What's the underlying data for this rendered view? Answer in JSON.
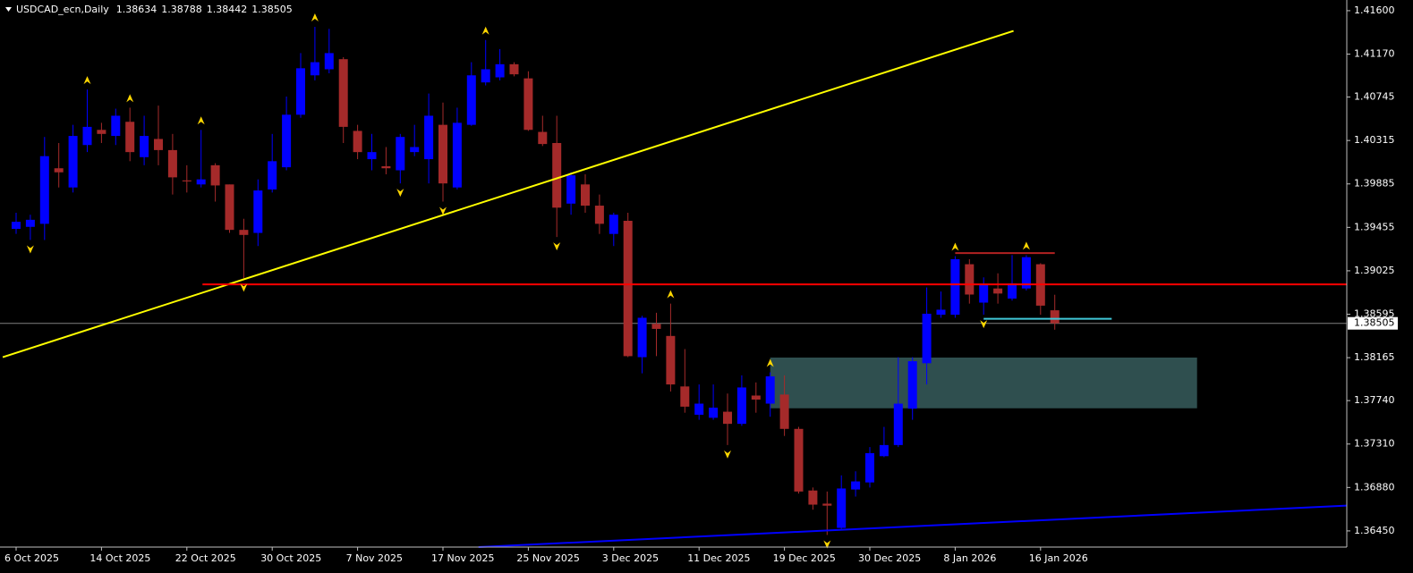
{
  "chart_data": {
    "type": "candlestick",
    "title": "USDCAD_ecn,Daily",
    "categories": [
      "6 Oct 2025",
      null,
      null,
      null,
      null,
      null,
      "14 Oct 2025",
      null,
      null,
      null,
      null,
      null,
      "22 Oct 2025",
      null,
      null,
      null,
      null,
      null,
      "30 Oct 2025",
      null,
      null,
      null,
      null,
      null,
      "7 Nov 2025",
      null,
      null,
      null,
      null,
      null,
      "17 Nov 2025",
      null,
      null,
      null,
      null,
      null,
      "25 Nov 2025",
      null,
      null,
      null,
      null,
      null,
      "3 Dec 2025",
      null,
      null,
      null,
      null,
      null,
      "11 Dec 2025",
      null,
      null,
      null,
      null,
      null,
      "19 Dec 2025",
      null,
      null,
      null,
      null,
      null,
      "30 Dec 2025",
      null,
      null,
      null,
      null,
      null,
      "8 Jan 2026",
      null,
      null,
      null,
      null,
      null,
      "16 Jan 2026",
      null
    ],
    "open": [
      1.3944,
      1.3946,
      1.3949,
      1.4004,
      1.3985,
      1.4027,
      1.4042,
      1.4036,
      1.405,
      1.4015,
      1.4033,
      1.4022,
      1.3992,
      1.3988,
      1.4007,
      1.3988,
      1.3943,
      1.394,
      1.3983,
      1.4005,
      1.4057,
      1.4096,
      1.4102,
      1.4112,
      1.4041,
      1.4013,
      1.4006,
      1.4002,
      1.402,
      1.4013,
      1.4047,
      1.3985,
      1.4047,
      1.4089,
      1.4094,
      1.4107,
      1.4093,
      1.404,
      1.4029,
      1.3969,
      1.3988,
      1.3967,
      1.3939,
      1.3952,
      1.3817,
      1.385,
      1.3838,
      1.3788,
      1.376,
      1.3757,
      1.3763,
      1.3751,
      1.3779,
      1.3771,
      1.378,
      1.3746,
      1.3685,
      1.3672,
      1.3648,
      1.3686,
      1.3693,
      1.3719,
      1.373,
      1.3766,
      1.3811,
      1.3859,
      1.3859,
      1.3909,
      1.3871,
      1.3885,
      1.3875,
      1.3885,
      1.3909,
      1.38634
    ],
    "high": [
      1.396,
      1.3958,
      1.4035,
      1.4029,
      1.4047,
      1.4082,
      1.4049,
      1.4063,
      1.4064,
      1.4056,
      1.4066,
      1.4038,
      1.4007,
      1.4042,
      1.4009,
      1.3988,
      1.3954,
      1.3993,
      1.4038,
      1.4075,
      1.4118,
      1.4144,
      1.4142,
      1.4114,
      1.4047,
      1.4038,
      1.4025,
      1.4038,
      1.4047,
      1.4078,
      1.4069,
      1.4064,
      1.4109,
      1.4131,
      1.4122,
      1.4109,
      1.41,
      1.4056,
      1.4056,
      1.4,
      1.3998,
      1.3978,
      1.396,
      1.396,
      1.3858,
      1.3861,
      1.387,
      1.3825,
      1.379,
      1.379,
      1.3781,
      1.3799,
      1.3792,
      1.3802,
      1.3799,
      1.3748,
      1.3688,
      1.3684,
      1.37,
      1.3704,
      1.3728,
      1.3748,
      1.3817,
      1.3817,
      1.3886,
      1.3882,
      1.3917,
      1.3914,
      1.3896,
      1.39,
      1.3918,
      1.3918,
      1.391,
      1.38788
    ],
    "low": [
      1.3939,
      1.3933,
      1.3933,
      1.3985,
      1.398,
      1.402,
      1.4029,
      1.4027,
      1.4011,
      1.4007,
      1.4007,
      1.3978,
      1.398,
      1.3985,
      1.3971,
      1.394,
      1.3895,
      1.3927,
      1.398,
      1.4002,
      1.4054,
      1.4091,
      1.4098,
      1.4029,
      1.4013,
      1.4002,
      1.3998,
      1.3989,
      1.4016,
      1.3989,
      1.3971,
      1.3983,
      1.4046,
      1.4086,
      1.4091,
      1.4095,
      1.4041,
      1.4026,
      1.3936,
      1.3958,
      1.396,
      1.3939,
      1.3927,
      1.3817,
      1.3801,
      1.3818,
      1.3783,
      1.3762,
      1.3755,
      1.3755,
      1.373,
      1.3749,
      1.3762,
      1.3758,
      1.3739,
      1.3682,
      1.3666,
      1.3641,
      1.3647,
      1.3679,
      1.3688,
      1.3718,
      1.3728,
      1.3755,
      1.379,
      1.3856,
      1.3856,
      1.387,
      1.3859,
      1.387,
      1.3873,
      1.3883,
      1.3859,
      1.38442
    ],
    "close": [
      1.3951,
      1.3953,
      1.4016,
      1.4,
      1.4036,
      1.4045,
      1.4038,
      1.4056,
      1.402,
      1.4036,
      1.4022,
      1.3995,
      1.3991,
      1.3993,
      1.3987,
      1.3943,
      1.3938,
      1.3982,
      1.4011,
      1.4057,
      1.4103,
      1.4109,
      1.4118,
      1.4045,
      1.402,
      1.402,
      1.4004,
      1.4035,
      1.4025,
      1.4056,
      1.3989,
      1.4049,
      1.4096,
      1.4102,
      1.4107,
      1.4097,
      1.4042,
      1.4028,
      1.3965,
      1.3997,
      1.3967,
      1.3949,
      1.3958,
      1.3818,
      1.3856,
      1.3845,
      1.379,
      1.3768,
      1.3771,
      1.3767,
      1.3751,
      1.3787,
      1.3775,
      1.3798,
      1.3746,
      1.3684,
      1.3671,
      1.367,
      1.3687,
      1.3694,
      1.3722,
      1.373,
      1.3771,
      1.3813,
      1.386,
      1.3864,
      1.3914,
      1.3879,
      1.3889,
      1.388,
      1.389,
      1.3916,
      1.3868,
      1.38505
    ],
    "up_color": "#0000ff",
    "down_color": "#a52a2a",
    "ylim": [
      1.3629,
      1.41688
    ],
    "yticks": [
      {
        "value": 1.416,
        "label": "1.41600"
      },
      {
        "value": 1.4117,
        "label": "1.41170"
      },
      1.40745,
      1.40315,
      1.39885,
      1.39455,
      1.39025,
      1.38595,
      1.38165,
      {
        "value": 1.3774,
        "label": "1.37740"
      },
      {
        "value": 1.3731,
        "label": "1.37310"
      },
      {
        "value": 1.3688,
        "label": "1.36880"
      },
      {
        "value": 1.3645,
        "label": "1.36450"
      }
    ],
    "fractals": {
      "color": "#ffd700",
      "up": [
        5,
        8,
        13,
        21,
        33,
        46,
        53,
        66,
        71
      ],
      "down": [
        1,
        16,
        27,
        30,
        38,
        50,
        57,
        68
      ]
    },
    "lines": [
      {
        "color": "#ffff00",
        "points": [
          [
            -0.94,
            1.3817
          ],
          [
            70.1,
            1.414
          ]
        ]
      },
      {
        "color": "#0000ff",
        "points": [
          [
            32.5,
            1.3629
          ],
          [
            93.5,
            1.367
          ]
        ]
      },
      {
        "color": "#ff0000",
        "points": [
          [
            13.1,
            1.3889
          ],
          [
            93.5,
            1.3889
          ]
        ]
      },
      {
        "color": "#b22222",
        "points": [
          [
            66,
            1.392
          ],
          [
            73,
            1.392
          ]
        ]
      },
      {
        "color": "#40c8d8",
        "points": [
          [
            68,
            1.3855
          ],
          [
            77,
            1.3855
          ]
        ]
      }
    ],
    "zone": {
      "color": "#2f4f4f",
      "points": [
        [
          53,
          1.38166
        ],
        [
          83,
          1.37664
        ]
      ]
    }
  }
}
